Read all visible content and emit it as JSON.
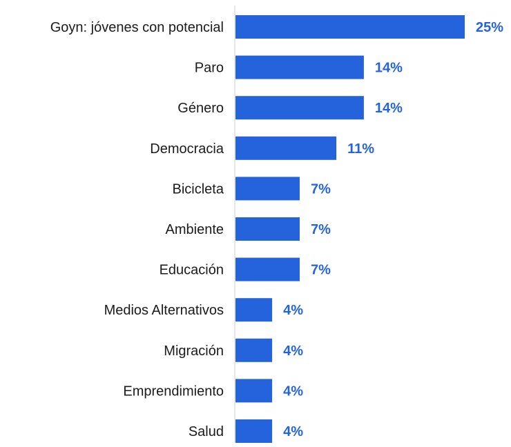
{
  "chart_data": {
    "type": "bar",
    "orientation": "horizontal",
    "categories": [
      "Goyn: jóvenes con potencial",
      "Paro",
      "Género",
      "Democracia",
      "Bicicleta",
      "Ambiente",
      "Educación",
      "Medios Alternativos",
      "Migración",
      "Emprendimiento",
      "Salud"
    ],
    "values": [
      25,
      14,
      14,
      11,
      7,
      7,
      7,
      4,
      4,
      4,
      4
    ],
    "value_labels": [
      "25%",
      "14%",
      "14%",
      "11%",
      "7%",
      "7%",
      "7%",
      "4%",
      "4%",
      "4%",
      "4%"
    ],
    "unit": "%",
    "title": "",
    "xlabel": "",
    "ylabel": "",
    "xlim": [
      0,
      25
    ],
    "grid": false,
    "legend": "none",
    "colors": {
      "bar": "#2463DB",
      "value_label": "#2463DB",
      "axis": "#cccccc",
      "category_label": "#1a1a1a"
    }
  }
}
